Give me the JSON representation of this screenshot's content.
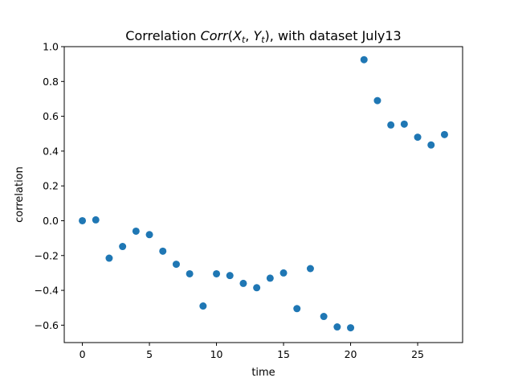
{
  "chart_data": {
    "type": "scatter",
    "title": "Correlation Corr(X_t, Y_t), with dataset July13",
    "title_parts": {
      "prefix": "Correlation ",
      "func": "Corr",
      "open": "(",
      "var1": "X",
      "sub1": "t",
      "comma": ", ",
      "var2": "Y",
      "sub2": "t",
      "close": ")",
      "suffix": ", with dataset July13"
    },
    "xlabel": "time",
    "ylabel": "correlation",
    "xlim": [
      -1.35,
      28.35
    ],
    "ylim": [
      -0.7,
      1.0
    ],
    "xticks": [
      0,
      5,
      10,
      15,
      20,
      25
    ],
    "xtick_labels": [
      "0",
      "5",
      "10",
      "15",
      "20",
      "25"
    ],
    "yticks": [
      -0.6,
      -0.4,
      -0.2,
      0.0,
      0.2,
      0.4,
      0.6,
      0.8,
      1.0
    ],
    "ytick_labels": [
      "−0.6",
      "−0.4",
      "−0.2",
      "0.0",
      "0.2",
      "0.4",
      "0.6",
      "0.8",
      "1.0"
    ],
    "grid": false,
    "color": "#1f77b4",
    "x": [
      0,
      1,
      2,
      3,
      4,
      5,
      6,
      7,
      8,
      9,
      10,
      11,
      12,
      13,
      14,
      15,
      16,
      17,
      18,
      19,
      20,
      21,
      22,
      23,
      24,
      25,
      26,
      27
    ],
    "y": [
      0.0,
      0.005,
      -0.215,
      -0.148,
      -0.06,
      -0.08,
      -0.175,
      -0.25,
      -0.305,
      -0.49,
      -0.305,
      -0.315,
      -0.36,
      -0.385,
      -0.33,
      -0.3,
      -0.505,
      -0.275,
      -0.55,
      -0.61,
      -0.615,
      0.925,
      0.69,
      0.55,
      0.555,
      0.48,
      0.435,
      0.495
    ]
  }
}
